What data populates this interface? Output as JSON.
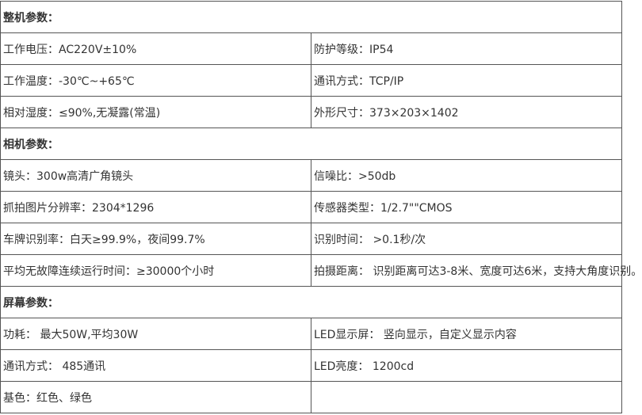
{
  "sections": [
    {
      "title": "整机参数：",
      "rows": [
        [
          "工作电压：AC220V±10%",
          "防护等级：IP54"
        ],
        [
          "工作温度：-30℃~+65℃",
          "通讯方式：TCP/IP"
        ],
        [
          "相对湿度：≤90%,无凝露(常温)",
          "外形尺寸：373×203×1402"
        ]
      ]
    },
    {
      "title": "相机参数：",
      "rows": [
        [
          "镜头：300w高清广角镜头",
          "信噪比：>50db"
        ],
        [
          "抓拍图片分辨率：2304*1296",
          "传感器类型：1/2.7\"\"CMOS"
        ],
        [
          "车牌识别率：白天≥99.9%，夜间99.7%",
          "识别时间： >0.1秒/次"
        ],
        [
          "平均无故障连续运行时间：≥30000个小时",
          "拍摄距离： 识别距离可达3-8米、宽度可达6米，支持大角度识别。"
        ]
      ]
    },
    {
      "title": "屏幕参数：",
      "rows": [
        [
          "功耗： 最大50W,平均30W",
          "LED显示屏： 竖向显示，自定义显示内容"
        ],
        [
          "通讯方式： 485通讯",
          "LED亮度： 1200cd"
        ],
        [
          "基色：红色、绿色",
          ""
        ]
      ]
    }
  ]
}
